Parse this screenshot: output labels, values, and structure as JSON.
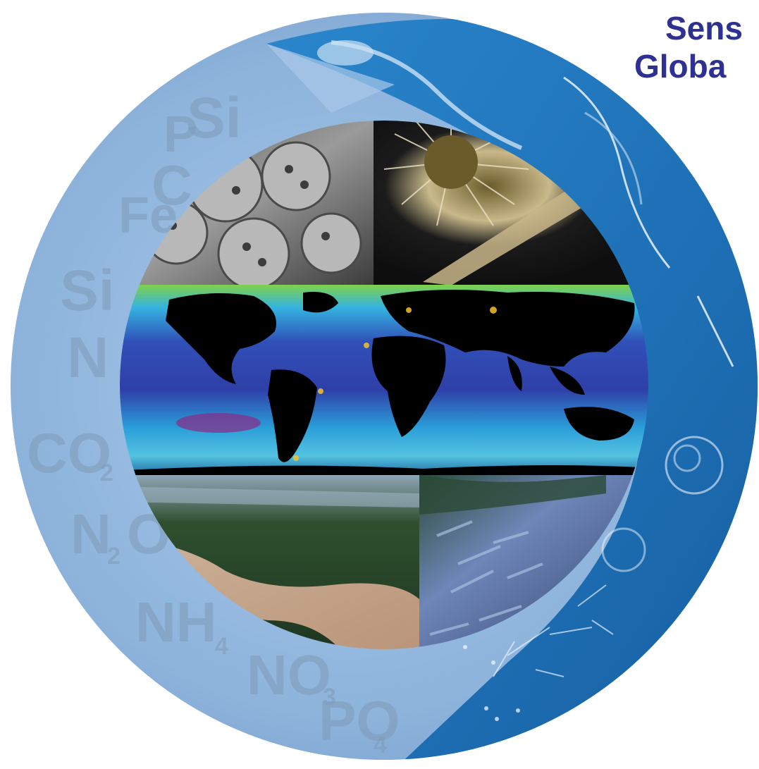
{
  "title": {
    "line1": "Sens",
    "line2": "Globa"
  },
  "chemistry_labels": [
    {
      "name": "p",
      "text": "P",
      "sub": ""
    },
    {
      "name": "si-top",
      "text": "Si",
      "sub": ""
    },
    {
      "name": "c",
      "text": "C",
      "sub": ""
    },
    {
      "name": "fe",
      "text": "Fe",
      "sub": ""
    },
    {
      "name": "si-left",
      "text": "Si",
      "sub": ""
    },
    {
      "name": "n",
      "text": "N",
      "sub": ""
    },
    {
      "name": "co2",
      "text": "CO",
      "sub": "2"
    },
    {
      "name": "n2o",
      "text": "N O",
      "sub": "2"
    },
    {
      "name": "nh4",
      "text": "NH",
      "sub": "4"
    },
    {
      "name": "no3",
      "text": "NO",
      "sub": "3"
    },
    {
      "name": "po4",
      "text": "PO",
      "sub": "4"
    }
  ],
  "colors": {
    "title": "#2e3192",
    "outer_ring_light": "#8eb4dc",
    "outer_ring_dark": "#1f6fb4",
    "ocean_deep": "#2b3fa6",
    "ocean_mid": "#2aa0d8",
    "chlorophyll": "#7fd24a",
    "land": "#000000"
  },
  "image_panels": [
    {
      "name": "coccolith-sem-photo",
      "subject": "coccolithophore microscopy"
    },
    {
      "name": "radiolarian-photo",
      "subject": "radiolarian"
    },
    {
      "name": "world-ocean-chlorophyll-map",
      "subject": "ocean chlorophyll map"
    },
    {
      "name": "amazon-river-aerial-photo",
      "subject": "river aerial view"
    },
    {
      "name": "fish-catch-net-photo",
      "subject": "fish in net"
    }
  ]
}
